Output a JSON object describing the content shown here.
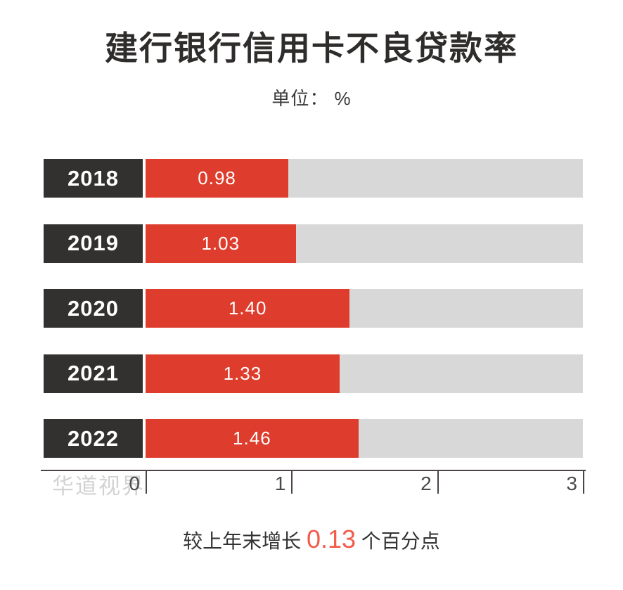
{
  "title": "建行银行信用卡不良贷款率",
  "subtitle": "单位： %",
  "watermark": "华道视界",
  "footer": {
    "prefix": "较上年末增长 ",
    "highlight": "0.13",
    "suffix": " 个百分点"
  },
  "colors": {
    "bar": "#de3c2c",
    "track": "#d8d8d8",
    "label_bg": "#333130",
    "highlight": "#f25b4a",
    "axis": "#4a4443",
    "watermark": "#d3d3d3"
  },
  "chart_data": {
    "type": "bar",
    "orientation": "horizontal",
    "title": "建行银行信用卡不良贷款率",
    "unit": "%",
    "categories": [
      "2018",
      "2019",
      "2020",
      "2021",
      "2022"
    ],
    "values": [
      0.98,
      1.03,
      1.4,
      1.33,
      1.46
    ],
    "value_labels": [
      "0.98",
      "1.03",
      "1.40",
      "1.33",
      "1.46"
    ],
    "xlim": [
      0,
      3
    ],
    "x_ticks": [
      0,
      1,
      2,
      3
    ],
    "x_tick_labels": [
      "0",
      "1",
      "2",
      "3"
    ],
    "grid": false,
    "legend": false,
    "annotation": "较上年末增长 0.13 个百分点"
  }
}
